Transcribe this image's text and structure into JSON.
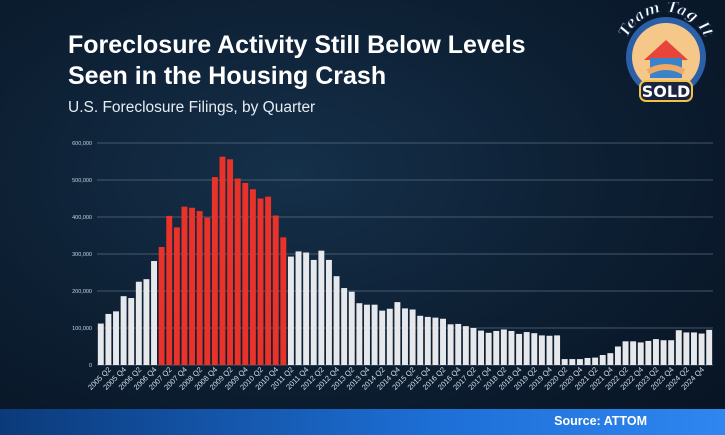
{
  "title": "Foreclosure Activity Still Below Levels Seen in the Housing Crash",
  "subtitle": "U.S. Foreclosure Filings, by Quarter",
  "source": "Source: ATTOM",
  "logo": {
    "top_text": "Team Tag It",
    "badge_text": "SOLD"
  },
  "colors": {
    "highlight": "#e8322a",
    "normal": "#e6e8eb",
    "grid": "#5b6b7c"
  },
  "chart_data": {
    "type": "bar",
    "xlabel": "",
    "ylabel": "",
    "ylim": [
      0,
      600000
    ],
    "y_ticks": [
      0,
      100000,
      200000,
      300000,
      400000,
      500000,
      600000
    ],
    "y_tick_labels": [
      "0",
      "100,000",
      "200,000",
      "300,000",
      "400,000",
      "500,000",
      "600,000"
    ],
    "x_tick_labels": [
      "2005 Q2",
      "2005 Q4",
      "2006 Q2",
      "2006 Q4",
      "2007 Q2",
      "2007 Q4",
      "2008 Q2",
      "2008 Q4",
      "2009 Q2",
      "2009 Q4",
      "2010 Q2",
      "2010 Q4",
      "2011 Q2",
      "2011 Q4",
      "2012 Q2",
      "2012 Q4",
      "2013 Q2",
      "2013 Q4",
      "2014 Q2",
      "2014 Q4",
      "2015 Q2",
      "2015 Q4",
      "2016 Q2",
      "2016 Q4",
      "2017 Q2",
      "2017 Q4",
      "2018 Q2",
      "2018 Q4",
      "2019 Q2",
      "2019 Q4",
      "2020 Q2",
      "2020 Q4",
      "2021 Q2",
      "2021 Q4",
      "2022 Q2",
      "2022 Q4",
      "2023 Q2",
      "2023 Q4",
      "2024 Q2",
      "2024 Q4"
    ],
    "categories": [
      "2005 Q1",
      "2005 Q2",
      "2005 Q3",
      "2005 Q4",
      "2006 Q1",
      "2006 Q2",
      "2006 Q3",
      "2006 Q4",
      "2007 Q1",
      "2007 Q2",
      "2007 Q3",
      "2007 Q4",
      "2008 Q1",
      "2008 Q2",
      "2008 Q3",
      "2008 Q4",
      "2009 Q1",
      "2009 Q2",
      "2009 Q3",
      "2009 Q4",
      "2010 Q1",
      "2010 Q2",
      "2010 Q3",
      "2010 Q4",
      "2011 Q1",
      "2011 Q2",
      "2011 Q3",
      "2011 Q4",
      "2012 Q1",
      "2012 Q2",
      "2012 Q3",
      "2012 Q4",
      "2013 Q1",
      "2013 Q2",
      "2013 Q3",
      "2013 Q4",
      "2014 Q1",
      "2014 Q2",
      "2014 Q3",
      "2014 Q4",
      "2015 Q1",
      "2015 Q2",
      "2015 Q3",
      "2015 Q4",
      "2016 Q1",
      "2016 Q2",
      "2016 Q3",
      "2016 Q4",
      "2017 Q1",
      "2017 Q2",
      "2017 Q3",
      "2017 Q4",
      "2018 Q1",
      "2018 Q2",
      "2018 Q3",
      "2018 Q4",
      "2019 Q1",
      "2019 Q2",
      "2019 Q3",
      "2019 Q4",
      "2020 Q1",
      "2020 Q2",
      "2020 Q3",
      "2020 Q4",
      "2021 Q1",
      "2021 Q2",
      "2021 Q3",
      "2021 Q4",
      "2022 Q1",
      "2022 Q2",
      "2022 Q3",
      "2022 Q4",
      "2023 Q1",
      "2023 Q2",
      "2023 Q3",
      "2023 Q4",
      "2024 Q1",
      "2024 Q2",
      "2024 Q3",
      "2024 Q4",
      "2025 Q1"
    ],
    "values": [
      112000,
      138000,
      145000,
      186000,
      181000,
      225000,
      232000,
      281000,
      319000,
      403000,
      372000,
      428000,
      425000,
      416000,
      398000,
      508000,
      563000,
      556000,
      504000,
      492000,
      475000,
      450000,
      455000,
      404000,
      345000,
      293000,
      307000,
      304000,
      284000,
      309000,
      284000,
      240000,
      208000,
      198000,
      167000,
      163000,
      163000,
      147000,
      152000,
      170000,
      153000,
      150000,
      133000,
      130000,
      128000,
      125000,
      110000,
      111000,
      105000,
      100000,
      93000,
      87000,
      92000,
      96000,
      92000,
      84000,
      89000,
      86000,
      80000,
      79000,
      80000,
      16000,
      16000,
      16000,
      19000,
      20000,
      27000,
      32000,
      50000,
      64000,
      64000,
      61000,
      65000,
      70000,
      67000,
      67000,
      94000,
      88000,
      88000,
      85000,
      95000
    ],
    "highlight": [
      false,
      false,
      false,
      false,
      false,
      false,
      false,
      false,
      true,
      true,
      true,
      true,
      true,
      true,
      true,
      true,
      true,
      true,
      true,
      true,
      true,
      true,
      true,
      true,
      true,
      false,
      false,
      false,
      false,
      false,
      false,
      false,
      false,
      false,
      false,
      false,
      false,
      false,
      false,
      false,
      false,
      false,
      false,
      false,
      false,
      false,
      false,
      false,
      false,
      false,
      false,
      false,
      false,
      false,
      false,
      false,
      false,
      false,
      false,
      false,
      false,
      false,
      false,
      false,
      false,
      false,
      false,
      false,
      false,
      false,
      false,
      false,
      false,
      false,
      false,
      false,
      false,
      false,
      false,
      false,
      false
    ],
    "grid": true,
    "legend": "none"
  }
}
